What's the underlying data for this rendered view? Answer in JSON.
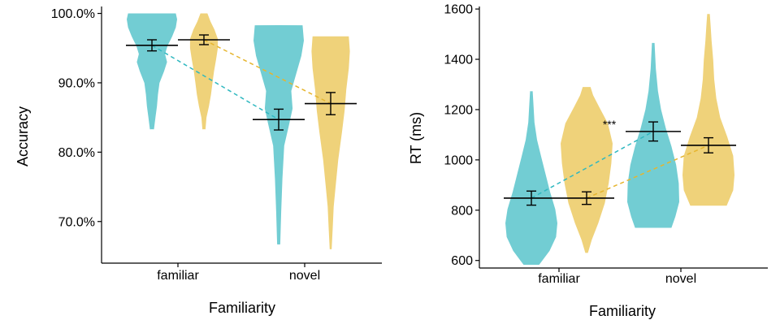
{
  "colors": {
    "teal": "#72cdd3",
    "gold": "#efd27a",
    "teal_line": "#2fb8c0",
    "gold_line": "#e6b52e",
    "axis": "#000000"
  },
  "chart_data": [
    {
      "type": "violin",
      "title": "",
      "xlabel": "Familiarity",
      "ylabel": "Accuracy",
      "categories": [
        "familiar",
        "novel"
      ],
      "ylim": [
        64,
        101
      ],
      "yticks": [
        70,
        80,
        90,
        100
      ],
      "ytick_labels": [
        "70.0%",
        "80.0%",
        "90.0%",
        "100.0%"
      ],
      "grid": false,
      "series": [
        {
          "color": "teal",
          "means": [
            95.4,
            84.7
          ],
          "errors": [
            0.8,
            1.5
          ],
          "ranges": [
            [
              83.3,
              100
            ],
            [
              66.7,
              98.3
            ]
          ]
        },
        {
          "color": "gold",
          "means": [
            96.2,
            87.0
          ],
          "errors": [
            0.7,
            1.6
          ],
          "ranges": [
            [
              83.3,
              100
            ],
            [
              66.0,
              96.7
            ]
          ]
        }
      ]
    },
    {
      "type": "violin",
      "title": "",
      "xlabel": "Familiarity",
      "ylabel": "RT (ms)",
      "categories": [
        "familiar",
        "novel"
      ],
      "ylim": [
        570,
        1610
      ],
      "yticks": [
        600,
        800,
        1000,
        1200,
        1400,
        1600
      ],
      "ytick_labels": [
        "600",
        "800",
        "1000",
        "1200",
        "1400",
        "1600"
      ],
      "grid": false,
      "annotation": "***",
      "series": [
        {
          "color": "teal",
          "means": [
            848,
            1113
          ],
          "errors": [
            28,
            38
          ],
          "ranges": [
            [
              583,
              1273
            ],
            [
              730,
              1465
            ]
          ]
        },
        {
          "color": "gold",
          "means": [
            848,
            1058
          ],
          "errors": [
            25,
            30
          ],
          "ranges": [
            [
              630,
              1290
            ],
            [
              818,
              1580
            ]
          ]
        }
      ]
    }
  ]
}
